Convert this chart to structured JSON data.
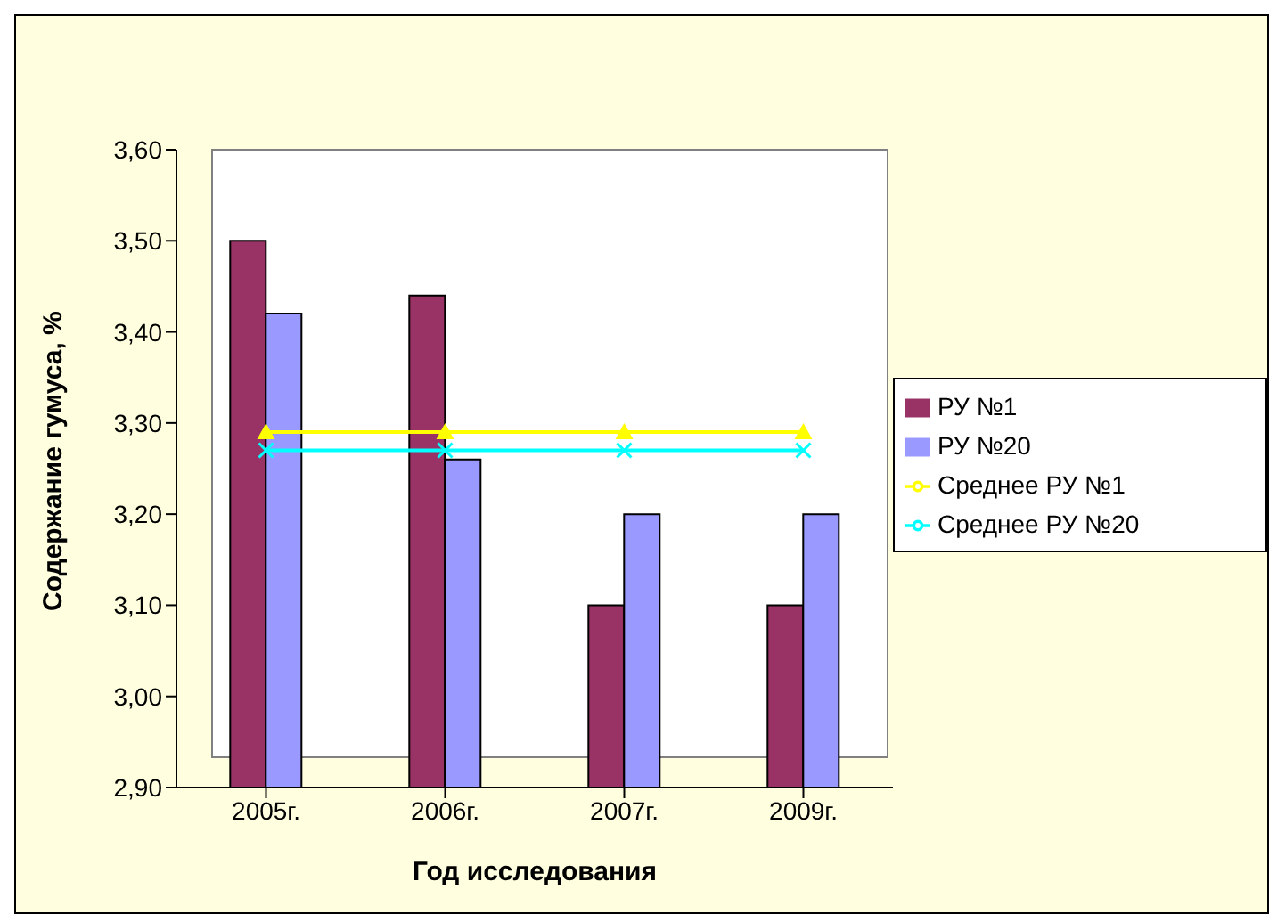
{
  "chart_data": {
    "type": "bar",
    "xlabel": "Год исследования",
    "ylabel": "Содержание гумуса, %",
    "categories": [
      "2005г.",
      "2006г.",
      "2007г.",
      "2009г."
    ],
    "series": [
      {
        "name": "РУ №1",
        "color": "#993366",
        "values": [
          3.5,
          3.44,
          3.1,
          3.1
        ]
      },
      {
        "name": "РУ №20",
        "color": "#9999ff",
        "values": [
          3.42,
          3.26,
          3.2,
          3.2
        ]
      },
      {
        "name": "Среднее РУ №1",
        "type": "line",
        "color": "#ffff00",
        "marker": "triangle",
        "values": [
          3.29,
          3.29,
          3.29,
          3.29
        ]
      },
      {
        "name": "Среднее РУ №20",
        "type": "line",
        "color": "#00ffff",
        "marker": "cross",
        "values": [
          3.27,
          3.27,
          3.27,
          3.27
        ]
      }
    ],
    "ylim": [
      2.9,
      3.6
    ],
    "yticks": [
      {
        "value": 2.9,
        "label": "2,90"
      },
      {
        "value": 3.0,
        "label": "3,00"
      },
      {
        "value": 3.1,
        "label": "3,10"
      },
      {
        "value": 3.2,
        "label": "3,20"
      },
      {
        "value": 3.3,
        "label": "3,30"
      },
      {
        "value": 3.4,
        "label": "3,40"
      },
      {
        "value": 3.5,
        "label": "3,50"
      },
      {
        "value": 3.6,
        "label": "3,60"
      }
    ],
    "grid": false,
    "legend": "right"
  }
}
